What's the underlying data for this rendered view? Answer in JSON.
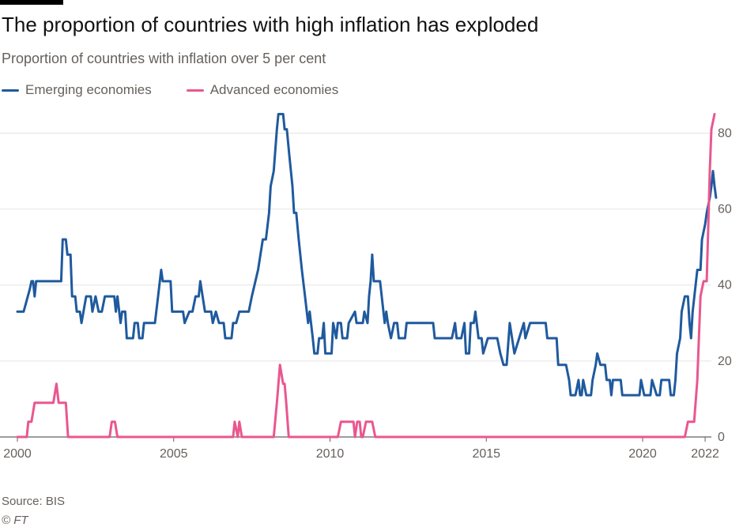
{
  "chart_data": {
    "type": "line",
    "title": "The proportion of countries with high inflation has exploded",
    "subtitle": "Proportion of countries with inflation over 5 per cent",
    "x_ticks": [
      2000,
      2005,
      2010,
      2015,
      2020,
      2022
    ],
    "y_ticks": [
      0,
      20,
      40,
      60,
      80
    ],
    "xlim": [
      2000,
      2022.2
    ],
    "ylim": [
      0,
      88
    ],
    "grid": true,
    "legend": "top-left",
    "source": "Source: BIS",
    "copyright": "© FT",
    "series": [
      {
        "name": "Emerging economies",
        "color": "#1f5a9e",
        "points": [
          [
            2000.0,
            33
          ],
          [
            2000.2,
            33
          ],
          [
            2000.4,
            39
          ],
          [
            2000.45,
            41
          ],
          [
            2000.5,
            41
          ],
          [
            2000.55,
            37
          ],
          [
            2000.6,
            41
          ],
          [
            2001.0,
            41
          ],
          [
            2001.3,
            41
          ],
          [
            2001.4,
            41
          ],
          [
            2001.45,
            52
          ],
          [
            2001.55,
            52
          ],
          [
            2001.6,
            48
          ],
          [
            2001.7,
            48
          ],
          [
            2001.75,
            37
          ],
          [
            2001.85,
            37
          ],
          [
            2001.9,
            33
          ],
          [
            2002.0,
            33
          ],
          [
            2002.05,
            30
          ],
          [
            2002.2,
            37
          ],
          [
            2002.35,
            37
          ],
          [
            2002.4,
            33
          ],
          [
            2002.5,
            37
          ],
          [
            2002.6,
            33
          ],
          [
            2002.7,
            33
          ],
          [
            2002.8,
            37
          ],
          [
            2003.1,
            37
          ],
          [
            2003.15,
            33
          ],
          [
            2003.2,
            37
          ],
          [
            2003.3,
            30
          ],
          [
            2003.35,
            33
          ],
          [
            2003.45,
            33
          ],
          [
            2003.5,
            26
          ],
          [
            2003.7,
            26
          ],
          [
            2003.75,
            30
          ],
          [
            2003.85,
            30
          ],
          [
            2003.9,
            26
          ],
          [
            2004.0,
            26
          ],
          [
            2004.05,
            30
          ],
          [
            2004.4,
            30
          ],
          [
            2004.5,
            37
          ],
          [
            2004.6,
            44
          ],
          [
            2004.65,
            41
          ],
          [
            2004.9,
            41
          ],
          [
            2004.95,
            33
          ],
          [
            2005.3,
            33
          ],
          [
            2005.35,
            30
          ],
          [
            2005.5,
            33
          ],
          [
            2005.6,
            33
          ],
          [
            2005.7,
            37
          ],
          [
            2005.8,
            37
          ],
          [
            2005.85,
            41
          ],
          [
            2006.0,
            33
          ],
          [
            2006.2,
            33
          ],
          [
            2006.25,
            30
          ],
          [
            2006.35,
            33
          ],
          [
            2006.45,
            30
          ],
          [
            2006.6,
            30
          ],
          [
            2006.65,
            26
          ],
          [
            2006.85,
            26
          ],
          [
            2006.9,
            30
          ],
          [
            2007.0,
            30
          ],
          [
            2007.1,
            33
          ],
          [
            2007.4,
            33
          ],
          [
            2007.5,
            37
          ],
          [
            2007.7,
            44
          ],
          [
            2007.85,
            52
          ],
          [
            2007.95,
            52
          ],
          [
            2008.05,
            59
          ],
          [
            2008.1,
            66
          ],
          [
            2008.2,
            70
          ],
          [
            2008.3,
            81
          ],
          [
            2008.35,
            85
          ],
          [
            2008.5,
            85
          ],
          [
            2008.55,
            81
          ],
          [
            2008.62,
            81
          ],
          [
            2008.7,
            74
          ],
          [
            2008.8,
            66
          ],
          [
            2008.85,
            59
          ],
          [
            2008.92,
            59
          ],
          [
            2009.0,
            52
          ],
          [
            2009.05,
            48
          ],
          [
            2009.1,
            44
          ],
          [
            2009.2,
            37
          ],
          [
            2009.3,
            30
          ],
          [
            2009.35,
            33
          ],
          [
            2009.45,
            26
          ],
          [
            2009.5,
            22
          ],
          [
            2009.6,
            22
          ],
          [
            2009.65,
            26
          ],
          [
            2009.75,
            26
          ],
          [
            2009.8,
            30
          ],
          [
            2009.85,
            22
          ],
          [
            2010.05,
            22
          ],
          [
            2010.1,
            30
          ],
          [
            2010.2,
            26
          ],
          [
            2010.25,
            30
          ],
          [
            2010.35,
            30
          ],
          [
            2010.4,
            26
          ],
          [
            2010.55,
            26
          ],
          [
            2010.6,
            30
          ],
          [
            2010.8,
            33
          ],
          [
            2010.85,
            30
          ],
          [
            2011.05,
            30
          ],
          [
            2011.1,
            33
          ],
          [
            2011.2,
            30
          ],
          [
            2011.25,
            37
          ],
          [
            2011.3,
            41
          ],
          [
            2011.35,
            48
          ],
          [
            2011.4,
            41
          ],
          [
            2011.6,
            41
          ],
          [
            2011.75,
            30
          ],
          [
            2011.8,
            33
          ],
          [
            2011.85,
            30
          ],
          [
            2011.95,
            26
          ],
          [
            2012.05,
            30
          ],
          [
            2012.15,
            30
          ],
          [
            2012.2,
            26
          ],
          [
            2012.4,
            26
          ],
          [
            2012.45,
            30
          ],
          [
            2012.6,
            30
          ],
          [
            2012.65,
            30
          ],
          [
            2013.2,
            30
          ],
          [
            2013.3,
            30
          ],
          [
            2013.35,
            26
          ],
          [
            2013.9,
            26
          ],
          [
            2014.0,
            30
          ],
          [
            2014.05,
            26
          ],
          [
            2014.2,
            26
          ],
          [
            2014.3,
            30
          ],
          [
            2014.35,
            22
          ],
          [
            2014.45,
            22
          ],
          [
            2014.5,
            30
          ],
          [
            2014.6,
            30
          ],
          [
            2014.65,
            33
          ],
          [
            2014.75,
            26
          ],
          [
            2014.85,
            26
          ],
          [
            2014.9,
            22
          ],
          [
            2015.05,
            26
          ],
          [
            2015.35,
            26
          ],
          [
            2015.45,
            22
          ],
          [
            2015.55,
            19
          ],
          [
            2015.65,
            19
          ],
          [
            2015.75,
            30
          ],
          [
            2015.9,
            22
          ],
          [
            2016.05,
            26
          ],
          [
            2016.2,
            30
          ],
          [
            2016.25,
            26
          ],
          [
            2016.4,
            30
          ],
          [
            2016.5,
            30
          ],
          [
            2016.55,
            30
          ],
          [
            2016.9,
            30
          ],
          [
            2016.95,
            26
          ],
          [
            2017.25,
            26
          ],
          [
            2017.3,
            19
          ],
          [
            2017.55,
            19
          ],
          [
            2017.65,
            15
          ],
          [
            2017.7,
            11
          ],
          [
            2017.85,
            11
          ],
          [
            2017.95,
            15
          ],
          [
            2018.0,
            11
          ],
          [
            2018.05,
            11
          ],
          [
            2018.1,
            15
          ],
          [
            2018.2,
            11
          ],
          [
            2018.35,
            11
          ],
          [
            2018.4,
            15
          ],
          [
            2018.5,
            19
          ],
          [
            2018.55,
            22
          ],
          [
            2018.65,
            19
          ],
          [
            2018.8,
            19
          ],
          [
            2018.85,
            15
          ],
          [
            2018.95,
            15
          ],
          [
            2019.0,
            11
          ],
          [
            2019.05,
            15
          ],
          [
            2019.3,
            15
          ],
          [
            2019.35,
            11
          ],
          [
            2019.9,
            11
          ],
          [
            2019.95,
            15
          ],
          [
            2020.05,
            11
          ],
          [
            2020.25,
            11
          ],
          [
            2020.3,
            15
          ],
          [
            2020.45,
            11
          ],
          [
            2020.55,
            11
          ],
          [
            2020.6,
            15
          ],
          [
            2020.85,
            15
          ],
          [
            2020.9,
            11
          ],
          [
            2021.0,
            11
          ],
          [
            2021.05,
            15
          ],
          [
            2021.1,
            22
          ],
          [
            2021.2,
            26
          ],
          [
            2021.25,
            33
          ],
          [
            2021.35,
            37
          ],
          [
            2021.45,
            37
          ],
          [
            2021.5,
            30
          ],
          [
            2021.55,
            26
          ],
          [
            2021.6,
            33
          ],
          [
            2021.75,
            44
          ],
          [
            2021.85,
            44
          ],
          [
            2021.9,
            52
          ],
          [
            2022.0,
            56
          ],
          [
            2022.05,
            59
          ],
          [
            2022.15,
            63
          ],
          [
            2022.2,
            66
          ],
          [
            2022.25,
            70
          ],
          [
            2022.3,
            66
          ],
          [
            2022.35,
            63
          ]
        ]
      },
      {
        "name": "Advanced economies",
        "color": "#e9578f",
        "points": [
          [
            2000.0,
            0
          ],
          [
            2000.3,
            0
          ],
          [
            2000.35,
            4
          ],
          [
            2000.45,
            4
          ],
          [
            2000.55,
            9
          ],
          [
            2000.65,
            9
          ],
          [
            2001.15,
            9
          ],
          [
            2001.25,
            14
          ],
          [
            2001.32,
            9
          ],
          [
            2001.45,
            9
          ],
          [
            2001.55,
            9
          ],
          [
            2001.62,
            0
          ],
          [
            2002.95,
            0
          ],
          [
            2003.02,
            4
          ],
          [
            2003.12,
            4
          ],
          [
            2003.2,
            0
          ],
          [
            2006.9,
            0
          ],
          [
            2006.95,
            4
          ],
          [
            2007.05,
            0
          ],
          [
            2007.1,
            4
          ],
          [
            2007.18,
            0
          ],
          [
            2008.2,
            0
          ],
          [
            2008.3,
            9
          ],
          [
            2008.4,
            19
          ],
          [
            2008.5,
            14
          ],
          [
            2008.55,
            14
          ],
          [
            2008.6,
            9
          ],
          [
            2008.68,
            0
          ],
          [
            2010.25,
            0
          ],
          [
            2010.35,
            4
          ],
          [
            2010.75,
            4
          ],
          [
            2010.8,
            0
          ],
          [
            2010.87,
            4
          ],
          [
            2010.95,
            4
          ],
          [
            2011.0,
            0
          ],
          [
            2011.05,
            0
          ],
          [
            2011.15,
            4
          ],
          [
            2011.35,
            4
          ],
          [
            2011.45,
            0
          ],
          [
            2021.35,
            0
          ],
          [
            2021.45,
            4
          ],
          [
            2021.65,
            4
          ],
          [
            2021.75,
            15
          ],
          [
            2021.8,
            26
          ],
          [
            2021.85,
            37
          ],
          [
            2021.95,
            41
          ],
          [
            2022.05,
            41
          ],
          [
            2022.15,
            70
          ],
          [
            2022.2,
            81
          ],
          [
            2022.3,
            85
          ]
        ]
      }
    ]
  }
}
